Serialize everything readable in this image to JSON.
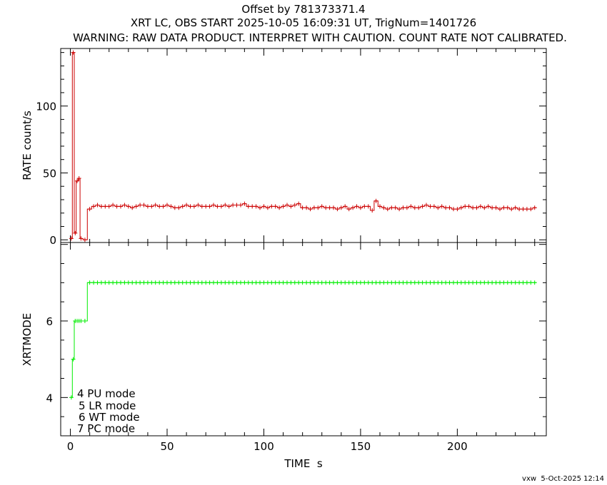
{
  "titles": {
    "line1": "Offset by 781373371.4",
    "line2": "XRT LC, OBS START 2025-10-05 16:09:31 UT, TrigNum=1401726",
    "line3": "WARNING: RAW DATA PRODUCT. INTERPRET WITH CAUTION. COUNT RATE NOT CALIBRATED."
  },
  "footer": "vxw  5-Oct-2025 12:14",
  "colors": {
    "rate": "#cc0000",
    "mode": "#00ee00",
    "axes": "#000000"
  },
  "chart_data": [
    {
      "type": "line",
      "panel": "top",
      "ylabel": "RATE  count/s",
      "xlabel": "",
      "xlim": [
        -5,
        246
      ],
      "ylim": [
        -2,
        143
      ],
      "y_scale": "linear",
      "y_ticks": [
        "0",
        "50",
        "100"
      ],
      "y_tick_values": [
        0,
        50,
        100
      ],
      "series": [
        {
          "x": [
            0.5,
            1.5,
            2.5,
            3.5,
            4.5,
            5.5,
            7.5,
            10,
            12,
            14,
            16,
            18,
            20,
            22,
            24,
            26,
            28,
            30,
            32,
            34,
            36,
            38,
            40,
            42,
            44,
            46,
            48,
            50,
            52,
            54,
            56,
            58,
            60,
            62,
            64,
            66,
            68,
            70,
            72,
            74,
            76,
            78,
            80,
            82,
            84,
            86,
            88,
            90,
            92,
            94,
            96,
            98,
            100,
            102,
            104,
            106,
            108,
            110,
            112,
            114,
            116,
            118,
            120,
            122,
            124,
            126,
            128,
            130,
            132,
            134,
            136,
            138,
            140,
            142,
            144,
            146,
            148,
            150,
            152,
            154,
            156,
            158,
            160,
            162,
            164,
            166,
            168,
            170,
            172,
            174,
            176,
            178,
            180,
            182,
            184,
            186,
            188,
            190,
            192,
            194,
            196,
            198,
            200,
            202,
            204,
            206,
            208,
            210,
            212,
            214,
            216,
            218,
            220,
            222,
            224,
            226,
            228,
            230,
            232,
            234,
            236,
            238,
            240
          ],
          "y": [
            1,
            140,
            5,
            44,
            46,
            1,
            0,
            23,
            25,
            26,
            25,
            25,
            25,
            26,
            25,
            25,
            26,
            25,
            24,
            25,
            26,
            26,
            25,
            25,
            26,
            25,
            25,
            26,
            25,
            24,
            24,
            25,
            26,
            25,
            25,
            26,
            25,
            25,
            25,
            26,
            25,
            25,
            26,
            25,
            26,
            26,
            26,
            27,
            25,
            25,
            25,
            24,
            25,
            24,
            25,
            25,
            24,
            25,
            26,
            25,
            26,
            27,
            24,
            24,
            23,
            24,
            24,
            25,
            24,
            24,
            24,
            23,
            24,
            25,
            23,
            24,
            25,
            24,
            25,
            25,
            22,
            29,
            25,
            24,
            23,
            24,
            24,
            23,
            24,
            24,
            25,
            24,
            24,
            25,
            26,
            25,
            25,
            24,
            25,
            24,
            24,
            23,
            23,
            24,
            25,
            25,
            24,
            24,
            25,
            24,
            25,
            24,
            24,
            23,
            24,
            24,
            23,
            24,
            23,
            23,
            23,
            23,
            24
          ]
        }
      ]
    },
    {
      "type": "line",
      "panel": "bottom",
      "ylabel": "XRTMODE",
      "xlabel": "TIME  s",
      "xlim": [
        -5,
        246
      ],
      "ylim": [
        3,
        8.05
      ],
      "y_ticks": [
        "4",
        "6"
      ],
      "y_tick_values": [
        4,
        6
      ],
      "x_ticks": [
        "0",
        "50",
        "100",
        "150",
        "200"
      ],
      "x_tick_values": [
        0,
        50,
        100,
        150,
        200
      ],
      "series": [
        {
          "x": [
            0.5,
            1.5,
            2.5,
            3.5,
            4.5,
            5.5,
            7.5,
            10,
            12,
            14,
            16,
            18,
            20,
            22,
            24,
            26,
            28,
            30,
            32,
            34,
            36,
            38,
            40,
            42,
            44,
            46,
            48,
            50,
            52,
            54,
            56,
            58,
            60,
            62,
            64,
            66,
            68,
            70,
            72,
            74,
            76,
            78,
            80,
            82,
            84,
            86,
            88,
            90,
            92,
            94,
            96,
            98,
            100,
            102,
            104,
            106,
            108,
            110,
            112,
            114,
            116,
            118,
            120,
            122,
            124,
            126,
            128,
            130,
            132,
            134,
            136,
            138,
            140,
            142,
            144,
            146,
            148,
            150,
            152,
            154,
            156,
            158,
            160,
            162,
            164,
            166,
            168,
            170,
            172,
            174,
            176,
            178,
            180,
            182,
            184,
            186,
            188,
            190,
            192,
            194,
            196,
            198,
            200,
            202,
            204,
            206,
            208,
            210,
            212,
            214,
            216,
            218,
            220,
            222,
            224,
            226,
            228,
            230,
            232,
            234,
            236,
            238,
            240
          ],
          "y": [
            4,
            5,
            6,
            6,
            6,
            6,
            6,
            7,
            7,
            7,
            7,
            7,
            7,
            7,
            7,
            7,
            7,
            7,
            7,
            7,
            7,
            7,
            7,
            7,
            7,
            7,
            7,
            7,
            7,
            7,
            7,
            7,
            7,
            7,
            7,
            7,
            7,
            7,
            7,
            7,
            7,
            7,
            7,
            7,
            7,
            7,
            7,
            7,
            7,
            7,
            7,
            7,
            7,
            7,
            7,
            7,
            7,
            7,
            7,
            7,
            7,
            7,
            7,
            7,
            7,
            7,
            7,
            7,
            7,
            7,
            7,
            7,
            7,
            7,
            7,
            7,
            7,
            7,
            7,
            7,
            7,
            7,
            7,
            7,
            7,
            7,
            7,
            7,
            7,
            7,
            7,
            7,
            7,
            7,
            7,
            7,
            7,
            7,
            7,
            7,
            7,
            7,
            7,
            7,
            7,
            7,
            7,
            7,
            7,
            7,
            7,
            7,
            7,
            7,
            7,
            7,
            7,
            7,
            7,
            7,
            7,
            7,
            7
          ]
        }
      ],
      "legend": [
        "4 PU mode",
        "5 LR mode",
        "6 WT mode",
        "7 PC mode"
      ]
    }
  ]
}
